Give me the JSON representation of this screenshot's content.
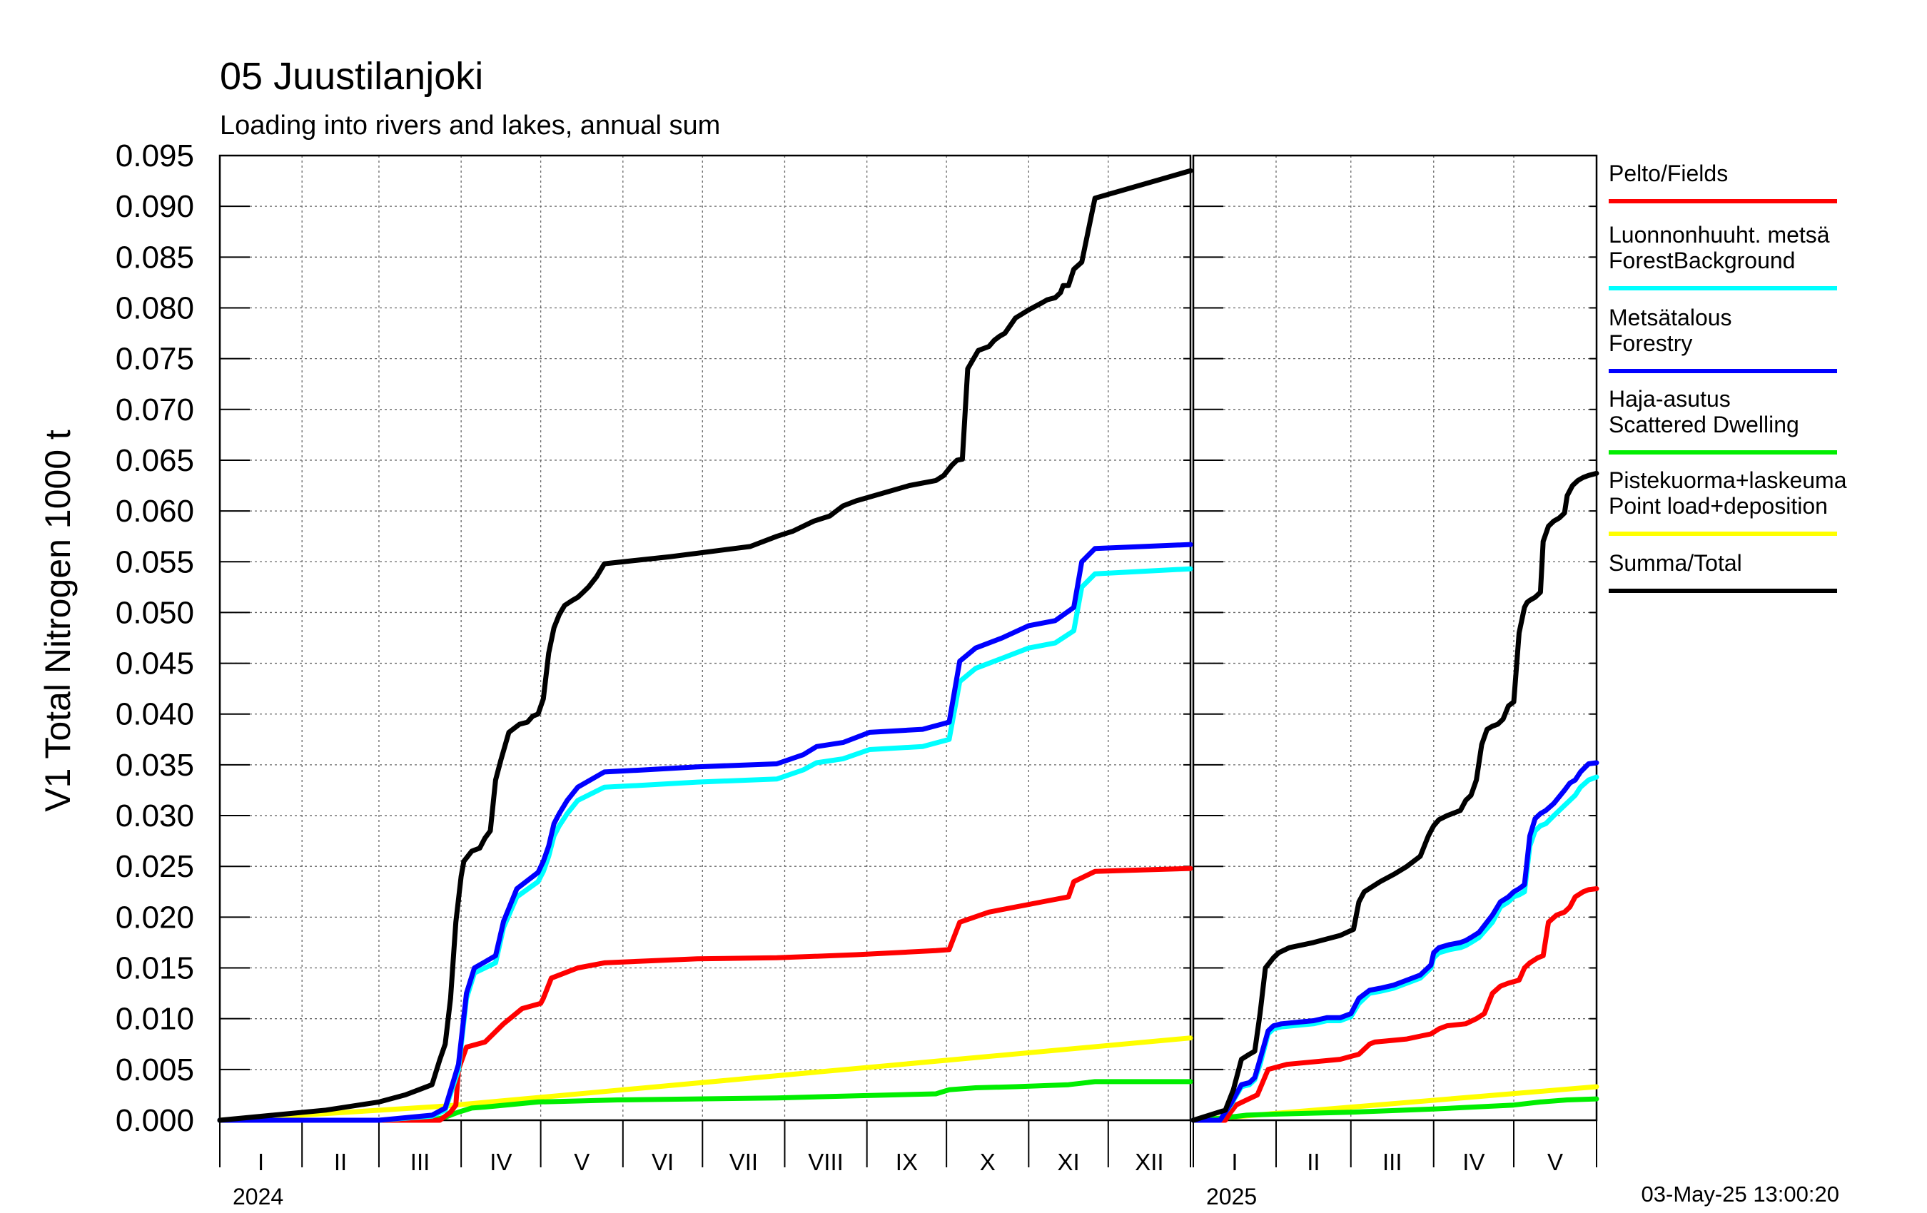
{
  "chart_data": {
    "type": "line",
    "title": "05 Juustilanjoki",
    "subtitle": "Loading into rivers and lakes, annual sum",
    "ylabel": "V1 Total Nitrogen 1000 t",
    "ylim": [
      0,
      0.095
    ],
    "yticks": [
      "0.000",
      "0.005",
      "0.010",
      "0.015",
      "0.020",
      "0.025",
      "0.030",
      "0.035",
      "0.040",
      "0.045",
      "0.050",
      "0.055",
      "0.060",
      "0.065",
      "0.070",
      "0.075",
      "0.080",
      "0.085",
      "0.090",
      "0.095"
    ],
    "grid": true,
    "legend_position": "right",
    "timestamp": "03-May-25 13:00:20",
    "x_unit": "day of year",
    "panels": [
      {
        "year": "2024",
        "x_range": [
          0,
          366
        ],
        "months": [
          "I",
          "II",
          "III",
          "IV",
          "V",
          "VI",
          "VII",
          "VIII",
          "IX",
          "X",
          "XI",
          "XII"
        ],
        "series": [
          {
            "name": "Pelto/Fields",
            "x": [
              0,
              60,
              83,
              87,
              89,
              90,
              93,
              100,
              107,
              114,
              121,
              122,
              125,
              135,
              145,
              180,
              210,
              240,
              270,
              275,
              279,
              290,
              310,
              320,
              322,
              330,
              366
            ],
            "y": [
              0,
              0,
              0,
              0.0008,
              0.0015,
              0.005,
              0.0072,
              0.0077,
              0.0095,
              0.011,
              0.0115,
              0.012,
              0.014,
              0.015,
              0.0155,
              0.0159,
              0.016,
              0.0163,
              0.0167,
              0.0168,
              0.0195,
              0.0205,
              0.0215,
              0.022,
              0.0235,
              0.0245,
              0.0248
            ]
          },
          {
            "name": "Luonnonhuuht. metsä ForestBackground",
            "x": [
              0,
              60,
              80,
              85,
              90,
              93,
              96,
              100,
              104,
              107,
              112,
              120,
              122,
              124,
              126,
              128,
              131,
              135,
              145,
              160,
              180,
              210,
              220,
              225,
              235,
              245,
              265,
              275,
              279,
              285,
              295,
              305,
              315,
              322,
              325,
              330,
              366
            ],
            "y": [
              0,
              0,
              0.0004,
              0.001,
              0.005,
              0.012,
              0.0145,
              0.015,
              0.0155,
              0.019,
              0.022,
              0.0235,
              0.0245,
              0.026,
              0.028,
              0.029,
              0.0302,
              0.0315,
              0.0328,
              0.033,
              0.0333,
              0.0336,
              0.0345,
              0.0352,
              0.0356,
              0.0365,
              0.0368,
              0.0375,
              0.0432,
              0.0445,
              0.0455,
              0.0465,
              0.047,
              0.0482,
              0.0525,
              0.0538,
              0.0543
            ]
          },
          {
            "name": "Metsätalous Forestry",
            "x": [
              0,
              60,
              80,
              85,
              90,
              93,
              96,
              100,
              104,
              107,
              112,
              120,
              122,
              124,
              126,
              128,
              131,
              135,
              145,
              160,
              180,
              210,
              220,
              225,
              235,
              245,
              265,
              275,
              279,
              285,
              295,
              305,
              315,
              322,
              325,
              330,
              366
            ],
            "y": [
              0,
              0,
              0.0005,
              0.0012,
              0.0055,
              0.0125,
              0.015,
              0.0156,
              0.0162,
              0.0196,
              0.0228,
              0.0244,
              0.0255,
              0.027,
              0.0292,
              0.0302,
              0.0315,
              0.0328,
              0.0343,
              0.0345,
              0.0348,
              0.0351,
              0.036,
              0.0368,
              0.0372,
              0.0382,
              0.0385,
              0.0392,
              0.0452,
              0.0465,
              0.0475,
              0.0487,
              0.0492,
              0.0505,
              0.055,
              0.0563,
              0.0567
            ]
          },
          {
            "name": "Haja-asutus Scattered Dwelling",
            "x": [
              0,
              80,
              85,
              90,
              95,
              100,
              120,
              150,
              210,
              240,
              270,
              275,
              285,
              300,
              320,
              330,
              366
            ],
            "y": [
              0,
              0,
              0.0003,
              0.0008,
              0.0012,
              0.0013,
              0.0018,
              0.002,
              0.0022,
              0.0024,
              0.0026,
              0.003,
              0.0032,
              0.0033,
              0.0035,
              0.0038,
              0.0038
            ]
          },
          {
            "name": "Pistekuorma+laskeuma Point load+deposition",
            "x": [
              0,
              85,
              366
            ],
            "y": [
              0,
              0.0014,
              0.0081
            ]
          },
          {
            "name": "Summa/Total",
            "x": [
              0,
              40,
              60,
              70,
              75,
              80,
              83,
              85,
              87,
              89,
              91,
              92,
              95,
              98,
              100,
              102,
              104,
              106,
              109,
              113,
              116,
              118,
              120,
              122,
              124,
              126,
              128,
              130,
              133,
              135,
              137,
              139,
              142,
              145,
              170,
              200,
              210,
              216,
              224,
              230,
              235,
              240,
              260,
              270,
              273,
              276,
              278,
              280,
              282,
              286,
              290,
              292,
              294,
              296,
              300,
              305,
              310,
              312,
              315,
              317,
              318,
              320,
              322,
              325,
              330,
              366
            ],
            "y": [
              0,
              0.001,
              0.0018,
              0.0025,
              0.003,
              0.0035,
              0.006,
              0.0075,
              0.012,
              0.0195,
              0.024,
              0.0255,
              0.0265,
              0.0268,
              0.0278,
              0.0285,
              0.0335,
              0.0355,
              0.0382,
              0.039,
              0.0392,
              0.0398,
              0.04,
              0.0415,
              0.046,
              0.0485,
              0.0498,
              0.0507,
              0.0512,
              0.0515,
              0.052,
              0.0525,
              0.0535,
              0.0548,
              0.0555,
              0.0565,
              0.0575,
              0.058,
              0.059,
              0.0595,
              0.0605,
              0.061,
              0.0625,
              0.063,
              0.0635,
              0.0645,
              0.065,
              0.0651,
              0.074,
              0.0758,
              0.0762,
              0.0768,
              0.0772,
              0.0775,
              0.079,
              0.0798,
              0.0805,
              0.0808,
              0.081,
              0.0815,
              0.0822,
              0.0822,
              0.0838,
              0.0845,
              0.0908,
              0.0935
            ]
          }
        ]
      },
      {
        "year": "2025",
        "x_range": [
          0,
          151
        ],
        "months": [
          "I",
          "II",
          "III",
          "IV",
          "V"
        ],
        "series": [
          {
            "name": "Pelto/Fields",
            "x": [
              0,
              12,
              14,
              16,
              20,
              24,
              28,
              35,
              55,
              62,
              64,
              66,
              68,
              72,
              80,
              89,
              92,
              95,
              102,
              106,
              109,
              112,
              115,
              118,
              122,
              124,
              126,
              129,
              131,
              133,
              136,
              139,
              141,
              143,
              146,
              148,
              151
            ],
            "y": [
              0,
              0,
              0.0008,
              0.0015,
              0.002,
              0.0025,
              0.005,
              0.0055,
              0.006,
              0.0065,
              0.007,
              0.0075,
              0.0077,
              0.0078,
              0.008,
              0.0085,
              0.009,
              0.0093,
              0.0095,
              0.01,
              0.0105,
              0.0125,
              0.0132,
              0.0135,
              0.0138,
              0.015,
              0.0155,
              0.016,
              0.0162,
              0.0195,
              0.0202,
              0.0205,
              0.021,
              0.022,
              0.0225,
              0.0227,
              0.0228
            ]
          },
          {
            "name": "Luonnonhuuht. metsä ForestBackground",
            "x": [
              0,
              10,
              12,
              14,
              18,
              21,
              23,
              25,
              28,
              30,
              33,
              45,
              50,
              55,
              59,
              62,
              66,
              70,
              75,
              80,
              85,
              89,
              90,
              92,
              96,
              100,
              102,
              104,
              107,
              112,
              115,
              118,
              120,
              122,
              124,
              126,
              128,
              130,
              132,
              135,
              139,
              141,
              143,
              145,
              148,
              151
            ],
            "y": [
              0,
              0,
              0.0008,
              0.0015,
              0.0033,
              0.0035,
              0.004,
              0.0055,
              0.0085,
              0.009,
              0.0092,
              0.0095,
              0.0098,
              0.0098,
              0.0102,
              0.0115,
              0.0125,
              0.0127,
              0.013,
              0.0135,
              0.014,
              0.015,
              0.016,
              0.0165,
              0.0168,
              0.017,
              0.0172,
              0.0175,
              0.018,
              0.0195,
              0.021,
              0.0215,
              0.022,
              0.0222,
              0.0225,
              0.027,
              0.0285,
              0.029,
              0.0292,
              0.03,
              0.031,
              0.0315,
              0.032,
              0.0328,
              0.0335,
              0.0338
            ]
          },
          {
            "name": "Metsätalous Forestry",
            "x": [
              0,
              10,
              12,
              14,
              18,
              21,
              23,
              25,
              28,
              30,
              33,
              45,
              50,
              55,
              59,
              62,
              66,
              70,
              75,
              80,
              85,
              89,
              90,
              92,
              96,
              100,
              102,
              104,
              107,
              112,
              115,
              118,
              120,
              122,
              124,
              126,
              128,
              130,
              132,
              135,
              139,
              141,
              143,
              145,
              148,
              151
            ],
            "y": [
              0,
              0,
              0.0008,
              0.0016,
              0.0035,
              0.0037,
              0.0042,
              0.006,
              0.0088,
              0.0093,
              0.0095,
              0.0098,
              0.0101,
              0.0101,
              0.0105,
              0.012,
              0.0128,
              0.013,
              0.0133,
              0.0138,
              0.0143,
              0.0153,
              0.0165,
              0.017,
              0.0173,
              0.0175,
              0.0177,
              0.018,
              0.0185,
              0.0202,
              0.0215,
              0.022,
              0.0225,
              0.0228,
              0.0232,
              0.028,
              0.0297,
              0.0302,
              0.0305,
              0.0312,
              0.0325,
              0.0332,
              0.0335,
              0.0343,
              0.0351,
              0.0352
            ]
          },
          {
            "name": "Haja-asutus Scattered Dwelling",
            "x": [
              0,
              10,
              20,
              30,
              60,
              90,
              120,
              130,
              140,
              151
            ],
            "y": [
              0,
              0.0002,
              0.0005,
              0.0006,
              0.0008,
              0.0011,
              0.0015,
              0.0018,
              0.002,
              0.0021
            ]
          },
          {
            "name": "Pistekuorma+laskeuma Point load+deposition",
            "x": [
              0,
              151
            ],
            "y": [
              0,
              0.0033
            ]
          },
          {
            "name": "Summa/Total",
            "x": [
              0,
              12,
              15,
              18,
              21,
              23,
              25,
              27,
              30,
              32,
              36,
              45,
              55,
              60,
              62,
              64,
              67,
              70,
              75,
              80,
              85,
              88,
              89,
              90,
              92,
              95,
              100,
              102,
              104,
              106,
              108,
              110,
              112,
              114,
              116,
              118,
              120,
              122,
              124,
              125,
              126,
              128,
              130,
              131,
              133,
              135,
              137,
              139,
              140,
              142,
              144,
              146,
              148,
              151
            ],
            "y": [
              0,
              0.001,
              0.003,
              0.006,
              0.0065,
              0.0068,
              0.0105,
              0.015,
              0.016,
              0.0165,
              0.017,
              0.0175,
              0.0182,
              0.0188,
              0.0215,
              0.0225,
              0.023,
              0.0235,
              0.0242,
              0.025,
              0.026,
              0.028,
              0.0285,
              0.029,
              0.0296,
              0.03,
              0.0305,
              0.0315,
              0.032,
              0.0335,
              0.037,
              0.0385,
              0.0388,
              0.039,
              0.0395,
              0.0408,
              0.0412,
              0.048,
              0.0505,
              0.051,
              0.0512,
              0.0515,
              0.052,
              0.057,
              0.0585,
              0.059,
              0.0593,
              0.0598,
              0.0615,
              0.0625,
              0.063,
              0.0633,
              0.0635,
              0.0637
            ]
          }
        ]
      }
    ],
    "series_styles": [
      {
        "name": "Pelto/Fields",
        "label_lines": [
          "Pelto/Fields"
        ],
        "color": "#ff0000"
      },
      {
        "name": "Luonnonhuuht. metsä ForestBackground",
        "label_lines": [
          "Luonnonhuuht. metsä",
          "ForestBackground"
        ],
        "color": "#00ffff"
      },
      {
        "name": "Metsätalous Forestry",
        "label_lines": [
          "Metsätalous",
          "Forestry"
        ],
        "color": "#0000ff"
      },
      {
        "name": "Haja-asutus Scattered Dwelling",
        "label_lines": [
          "Haja-asutus",
          "Scattered Dwelling"
        ],
        "color": "#00ee00"
      },
      {
        "name": "Pistekuorma+laskeuma Point load+deposition",
        "label_lines": [
          "Pistekuorma+laskeuma",
          "Point load+deposition"
        ],
        "color": "#ffff00"
      },
      {
        "name": "Summa/Total",
        "label_lines": [
          "Summa/Total"
        ],
        "color": "#000000"
      }
    ]
  }
}
